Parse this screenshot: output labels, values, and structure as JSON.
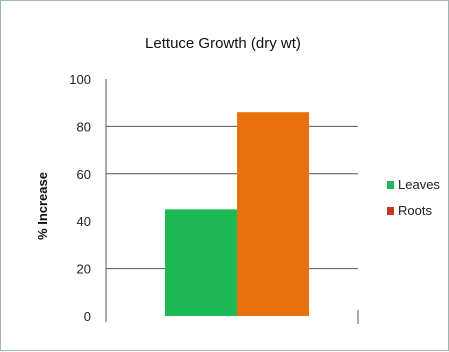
{
  "chart_data": {
    "type": "bar",
    "title": "Lettuce Growth (dry wt)",
    "xlabel": "",
    "ylabel": "% Increase",
    "ylim": [
      0,
      100
    ],
    "yticks": [
      0,
      20,
      40,
      60,
      80,
      100
    ],
    "grid": true,
    "legend_position": "right",
    "categories": [
      ""
    ],
    "series": [
      {
        "name": "Leaves",
        "values": [
          45
        ],
        "color": "#1db954"
      },
      {
        "name": "Roots",
        "values": [
          86
        ],
        "color": "#e8710a"
      }
    ],
    "legend_swatch_colors": [
      "#1db954",
      "#c0392b"
    ]
  }
}
